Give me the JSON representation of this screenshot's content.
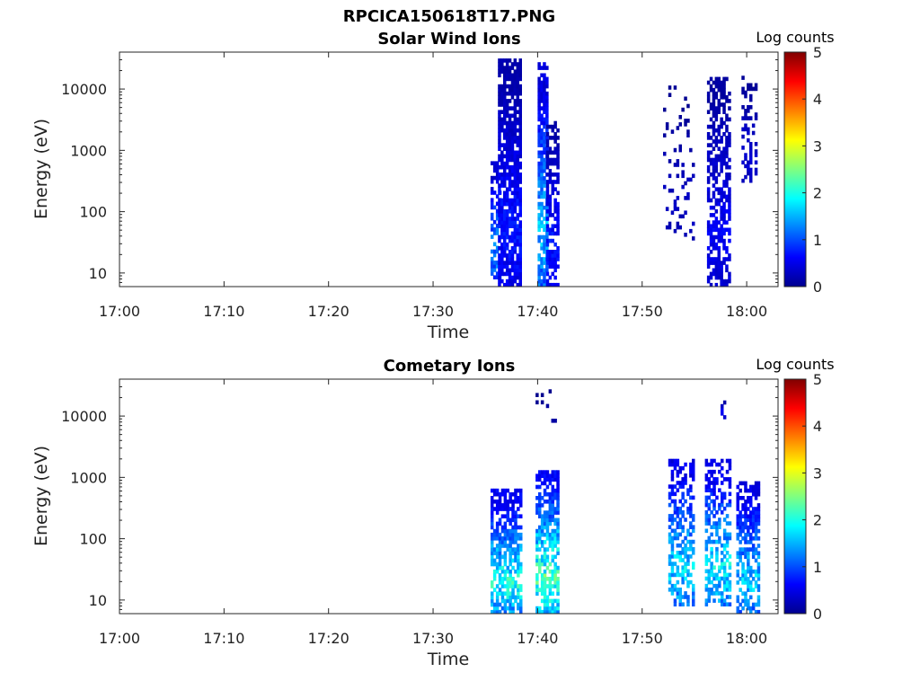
{
  "figure_title": "RPCICA150618T17.PNG",
  "colorbar_label": "Log counts",
  "colorbar_ticks": [
    "0",
    "1",
    "2",
    "3",
    "4",
    "5"
  ],
  "chart_data": [
    {
      "type": "heatmap",
      "title": "Solar Wind Ions",
      "xlabel": "Time",
      "ylabel": "Energy (eV)",
      "xticks": [
        "17:00",
        "17:10",
        "17:20",
        "17:30",
        "17:40",
        "17:50",
        "18:00"
      ],
      "yticks": [
        "10",
        "100",
        "1000",
        "10000"
      ],
      "xlim": [
        "17:00",
        "18:03"
      ],
      "ylim": [
        6,
        40000
      ],
      "yscale": "log",
      "clim": [
        0,
        5
      ],
      "colormap": "jet",
      "bursts": [
        {
          "t_start": "17:35.5",
          "t_end": "17:36.3",
          "e_min": 8,
          "e_max": 600,
          "density": 0.55,
          "peak_log_counts": 1.6
        },
        {
          "t_start": "17:36.2",
          "t_end": "17:38.4",
          "e_min": 6,
          "e_max": 30000,
          "density": 0.8,
          "peak_log_counts": 0.9
        },
        {
          "t_start": "17:40.0",
          "t_end": "17:41.0",
          "e_min": 6,
          "e_max": 25000,
          "density": 0.7,
          "peak_log_counts": 1.9
        },
        {
          "t_start": "17:40.8",
          "t_end": "17:42.0",
          "e_min": 6,
          "e_max": 3000,
          "density": 0.6,
          "peak_log_counts": 0.9
        },
        {
          "t_start": "17:52.0",
          "t_end": "17:55.0",
          "e_min": 30,
          "e_max": 10000,
          "density": 0.12,
          "peak_log_counts": 0.4
        },
        {
          "t_start": "17:56.2",
          "t_end": "17:58.3",
          "e_min": 6,
          "e_max": 15000,
          "density": 0.6,
          "peak_log_counts": 0.7
        },
        {
          "t_start": "17:59.5",
          "t_end": "18:01.0",
          "e_min": 300,
          "e_max": 15000,
          "density": 0.35,
          "peak_log_counts": 0.5
        }
      ]
    },
    {
      "type": "heatmap",
      "title": "Cometary Ions",
      "xlabel": "Time",
      "ylabel": "Energy (eV)",
      "xticks": [
        "17:00",
        "17:10",
        "17:20",
        "17:30",
        "17:40",
        "17:50",
        "18:00"
      ],
      "yticks": [
        "10",
        "100",
        "1000",
        "10000"
      ],
      "xlim": [
        "17:00",
        "18:03"
      ],
      "ylim": [
        6,
        40000
      ],
      "yscale": "log",
      "clim": [
        0,
        5
      ],
      "colormap": "jet",
      "bursts": [
        {
          "t_start": "17:35.5",
          "t_end": "17:38.3",
          "e_min": 6,
          "e_max": 600,
          "density": 0.65,
          "peak_log_counts": 2.4
        },
        {
          "t_start": "17:39.8",
          "t_end": "17:42.0",
          "e_min": 6,
          "e_max": 1300,
          "density": 0.7,
          "peak_log_counts": 2.7
        },
        {
          "t_start": "17:39.8",
          "t_end": "17:41.8",
          "e_min": 3000,
          "e_max": 30000,
          "density": 0.04,
          "peak_log_counts": 0.3
        },
        {
          "t_start": "17:52.5",
          "t_end": "17:55.0",
          "e_min": 8,
          "e_max": 2000,
          "density": 0.5,
          "peak_log_counts": 2.1
        },
        {
          "t_start": "17:56.0",
          "t_end": "17:58.5",
          "e_min": 8,
          "e_max": 2000,
          "density": 0.55,
          "peak_log_counts": 2.2
        },
        {
          "t_start": "17:57.5",
          "t_end": "17:58.0",
          "e_min": 9000,
          "e_max": 17000,
          "density": 0.3,
          "peak_log_counts": 0.8
        },
        {
          "t_start": "17:59.0",
          "t_end": "18:01.2",
          "e_min": 6,
          "e_max": 800,
          "density": 0.6,
          "peak_log_counts": 2.0
        }
      ]
    }
  ]
}
